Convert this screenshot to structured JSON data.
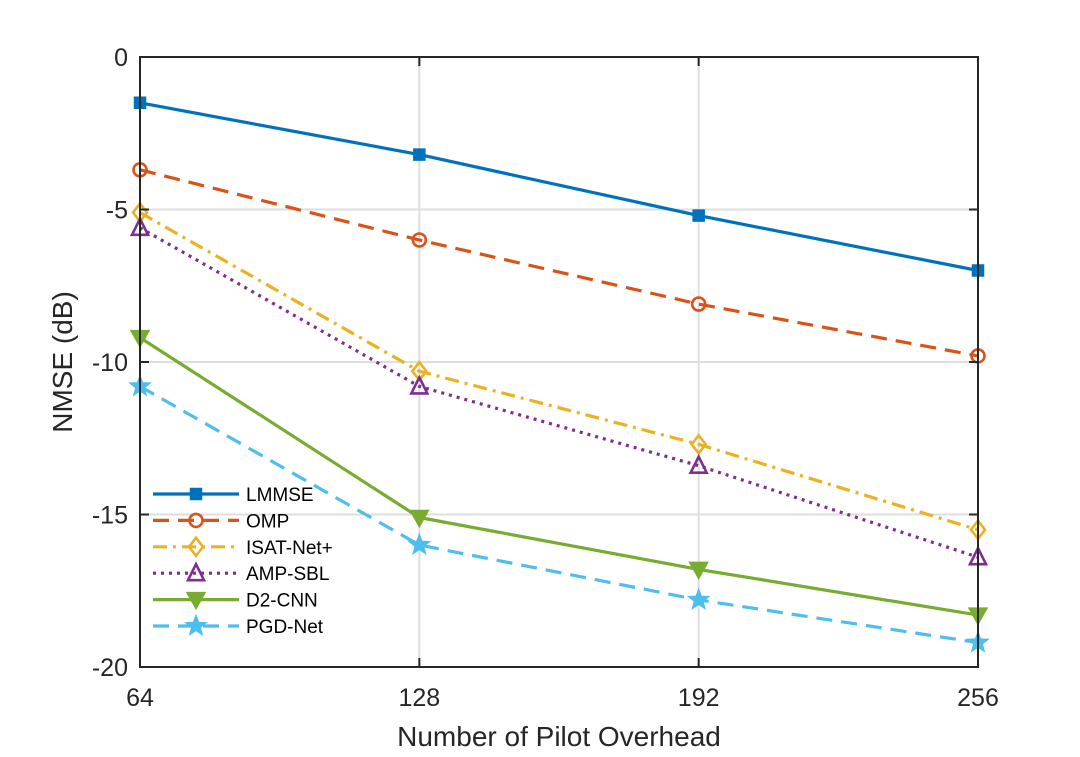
{
  "chart_data": {
    "type": "line",
    "title": "",
    "xlabel": "Number of Pilot Overhead",
    "ylabel": "NMSE (dB)",
    "x": [
      64,
      128,
      192,
      256
    ],
    "xticks": [
      64,
      128,
      192,
      256
    ],
    "xtick_labels": [
      "64",
      "128",
      "192",
      "256"
    ],
    "yticks": [
      -20,
      -15,
      -10,
      -5,
      0
    ],
    "ytick_labels": [
      "-20",
      "-15",
      "-10",
      "-5",
      "0"
    ],
    "xlim": [
      64,
      256
    ],
    "ylim": [
      -20,
      0
    ],
    "grid": true,
    "legend_position": "bottom-left",
    "series": [
      {
        "name": "LMMSE",
        "values": [
          -1.5,
          -3.2,
          -5.2,
          -7.0
        ],
        "color": "#0072BD",
        "dash": "solid",
        "marker": "square"
      },
      {
        "name": "OMP",
        "values": [
          -3.7,
          -6.0,
          -8.1,
          -9.8
        ],
        "color": "#D95319",
        "dash": "dashed",
        "marker": "circle"
      },
      {
        "name": "ISAT-Net+",
        "values": [
          -5.1,
          -10.3,
          -12.7,
          -15.5
        ],
        "color": "#EDB120",
        "dash": "dashdot",
        "marker": "diamond"
      },
      {
        "name": "AMP-SBL",
        "values": [
          -5.6,
          -10.8,
          -13.4,
          -16.4
        ],
        "color": "#7E2F8E",
        "dash": "dotted",
        "marker": "triangle-up"
      },
      {
        "name": "D2-CNN",
        "values": [
          -9.2,
          -15.1,
          -16.8,
          -18.3
        ],
        "color": "#77AC30",
        "dash": "solid",
        "marker": "triangle-down"
      },
      {
        "name": "PGD-Net",
        "values": [
          -10.8,
          -16.0,
          -17.8,
          -19.2
        ],
        "color": "#4DBEEE",
        "dash": "dashed",
        "marker": "star"
      }
    ]
  }
}
